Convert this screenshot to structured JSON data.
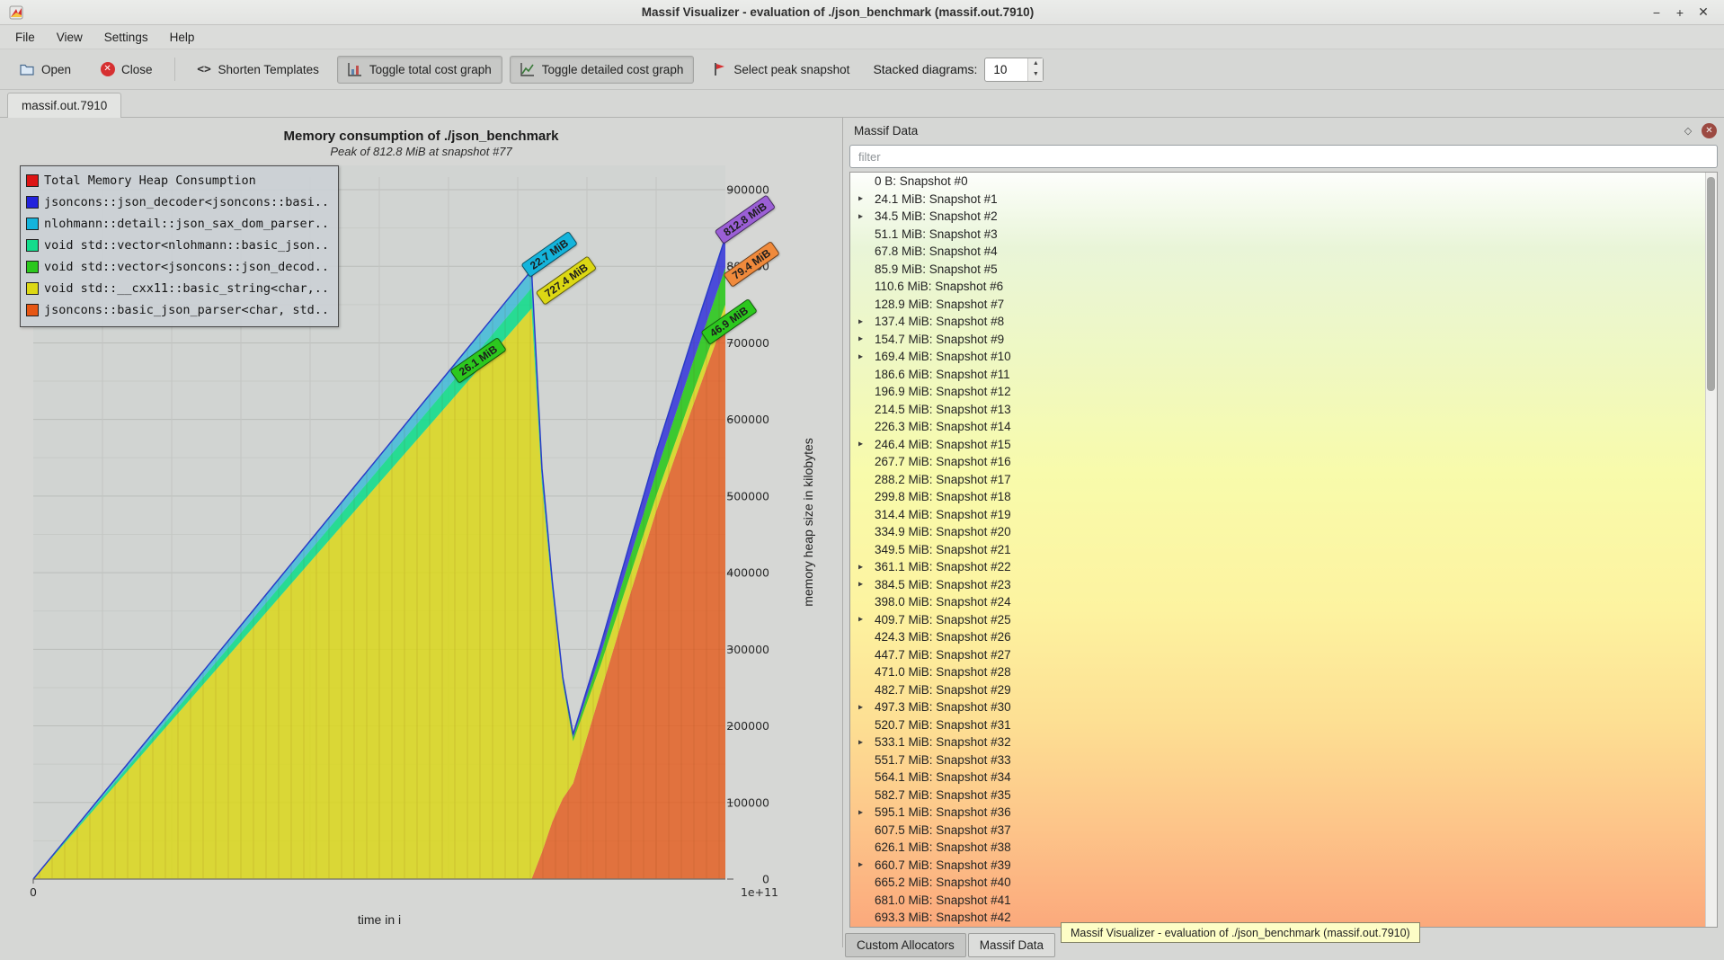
{
  "window": {
    "title": "Massif Visualizer - evaluation of ./json_benchmark (massif.out.7910)",
    "minimize": "−",
    "maximize": "+",
    "close": "✕"
  },
  "menubar": {
    "items": [
      "File",
      "View",
      "Settings",
      "Help"
    ]
  },
  "toolbar": {
    "open": "Open",
    "close": "Close",
    "shorten_icon": "<>",
    "shorten_templates": "Shorten Templates",
    "toggle_total": "Toggle total cost graph",
    "toggle_detailed": "Toggle detailed cost graph",
    "select_peak": "Select peak snapshot",
    "stacked_label": "Stacked diagrams:",
    "stacked_value": "10"
  },
  "tabbar": {
    "active_tab": "massif.out.7910"
  },
  "chart": {
    "legend": [
      {
        "label": "Total Memory Heap Consumption",
        "color": "#dc1414"
      },
      {
        "label": "jsoncons::json_decoder<jsoncons::basi..",
        "color": "#2323dc"
      },
      {
        "label": "nlohmann::detail::json_sax_dom_parser..",
        "color": "#14b4dc"
      },
      {
        "label": "void std::vector<nlohmann::basic_json..",
        "color": "#14dc8c"
      },
      {
        "label": "void std::vector<jsoncons::json_decod..",
        "color": "#2cc81e"
      },
      {
        "label": "void std::__cxx11::basic_string<char,..",
        "color": "#dcd814"
      },
      {
        "label": "jsoncons::basic_json_parser<char, std..",
        "color": "#e65614"
      }
    ]
  },
  "chart_data": {
    "type": "area",
    "title": "Memory consumption of ./json_benchmark",
    "subtitle": "Peak of 812.8 MiB at snapshot #77",
    "xlabel": "time in i",
    "ylabel": "memory heap size in kilobytes",
    "xlim": [
      0,
      105000000000
    ],
    "ylim": [
      0,
      900000
    ],
    "xtick_labels": [
      "0",
      "1e+11"
    ],
    "yticks": [
      0,
      100000,
      200000,
      300000,
      400000,
      500000,
      600000,
      700000,
      800000,
      900000
    ],
    "grid": true,
    "legend_position": "top-left",
    "x": [
      0,
      0.05,
      0.1,
      0.15,
      0.2,
      0.25,
      0.3,
      0.35,
      0.4,
      0.45,
      0.5,
      0.55,
      0.6,
      0.65,
      0.7,
      0.72,
      0.735,
      0.75,
      0.765,
      0.78,
      0.82,
      0.86,
      0.9,
      0.95,
      1.0
    ],
    "series": [
      {
        "name": "jsoncons::basic_json_parser<char, std..",
        "color": "#e65614",
        "opacity": 0.78,
        "values": [
          0,
          0,
          0,
          0,
          0,
          0,
          0,
          0,
          0,
          0,
          0,
          0,
          0,
          0,
          0,
          0,
          35000,
          75000,
          105000,
          125000,
          245000,
          365000,
          480000,
          610000,
          735000
        ]
      },
      {
        "name": "void std::__cxx11::basic_string<char,..",
        "color": "#dcd814",
        "opacity": 0.82,
        "values": [
          0,
          51700,
          103500,
          155200,
          206900,
          258700,
          310400,
          362200,
          413900,
          465600,
          517400,
          569100,
          620800,
          672600,
          724300,
          745000,
          480000,
          300000,
          150000,
          55000,
          35000,
          25000,
          20000,
          17000,
          15000
        ]
      },
      {
        "name": "void std::vector<nlohmann::basic_json..",
        "color": "#14dc8c",
        "opacity": 0.9,
        "values": [
          0,
          1900,
          3700,
          5600,
          7400,
          9300,
          11100,
          13000,
          14800,
          16700,
          18500,
          20400,
          22300,
          24100,
          26000,
          26700,
          9000,
          4000,
          1000,
          0,
          0,
          0,
          0,
          0,
          0
        ]
      },
      {
        "name": "nlohmann::detail::json_sax_dom_parser..",
        "color": "#14b4dc",
        "opacity": 0.65,
        "values": [
          0,
          1600,
          3200,
          4800,
          6400,
          8100,
          9700,
          11300,
          12900,
          14500,
          16100,
          17700,
          19300,
          20900,
          22600,
          23200,
          8000,
          3000,
          1000,
          0,
          0,
          0,
          0,
          0,
          0
        ]
      },
      {
        "name": "void std::vector<jsoncons::json_decod..",
        "color": "#2cc81e",
        "opacity": 0.9,
        "values": [
          0,
          0,
          0,
          0,
          0,
          0,
          0,
          0,
          0,
          0,
          0,
          0,
          0,
          0,
          0,
          0,
          2000,
          3000,
          4000,
          5000,
          14000,
          23000,
          31000,
          40000,
          48000
        ]
      },
      {
        "name": "jsoncons::json_decoder<jsoncons::basi..",
        "color": "#3232dc",
        "opacity": 0.85,
        "values": [
          0,
          0,
          0,
          0,
          0,
          0,
          0,
          0,
          0,
          0,
          0,
          0,
          0,
          0,
          0,
          0,
          2000,
          3000,
          3000,
          4000,
          12000,
          19000,
          26000,
          33000,
          40000
        ]
      }
    ],
    "total_line": {
      "label": "Total Memory Heap Consumption",
      "color": "#2a3cc8"
    },
    "annotations": [
      {
        "text": "26.1 MiB",
        "bg": "#2cc81e",
        "x": 0.643,
        "v": 677000
      },
      {
        "text": "22.7 MiB",
        "bg": "#14b4dc",
        "x": 0.746,
        "v": 816000
      },
      {
        "text": "727.4 MiB",
        "bg": "#dcd814",
        "x": 0.77,
        "v": 782000
      },
      {
        "text": "812.8 MiB",
        "bg": "#9b5fd6",
        "x": 1.028,
        "v": 861000
      },
      {
        "text": "79.4 MiB",
        "bg": "#f08a3c",
        "x": 1.038,
        "v": 803000
      },
      {
        "text": "46.9 MiB",
        "bg": "#2cc81e",
        "x": 1.005,
        "v": 727000
      }
    ]
  },
  "dock": {
    "title": "Massif Data",
    "filter_placeholder": "filter",
    "snapshots": [
      {
        "label": "0 B: Snapshot #0",
        "expandable": false
      },
      {
        "label": "24.1 MiB: Snapshot #1",
        "expandable": true
      },
      {
        "label": "34.5 MiB: Snapshot #2",
        "expandable": true
      },
      {
        "label": "51.1 MiB: Snapshot #3",
        "expandable": false
      },
      {
        "label": "67.8 MiB: Snapshot #4",
        "expandable": false
      },
      {
        "label": "85.9 MiB: Snapshot #5",
        "expandable": false
      },
      {
        "label": "110.6 MiB: Snapshot #6",
        "expandable": false
      },
      {
        "label": "128.9 MiB: Snapshot #7",
        "expandable": false
      },
      {
        "label": "137.4 MiB: Snapshot #8",
        "expandable": true
      },
      {
        "label": "154.7 MiB: Snapshot #9",
        "expandable": true
      },
      {
        "label": "169.4 MiB: Snapshot #10",
        "expandable": true
      },
      {
        "label": "186.6 MiB: Snapshot #11",
        "expandable": false
      },
      {
        "label": "196.9 MiB: Snapshot #12",
        "expandable": false
      },
      {
        "label": "214.5 MiB: Snapshot #13",
        "expandable": false
      },
      {
        "label": "226.3 MiB: Snapshot #14",
        "expandable": false
      },
      {
        "label": "246.4 MiB: Snapshot #15",
        "expandable": true
      },
      {
        "label": "267.7 MiB: Snapshot #16",
        "expandable": false
      },
      {
        "label": "288.2 MiB: Snapshot #17",
        "expandable": false
      },
      {
        "label": "299.8 MiB: Snapshot #18",
        "expandable": false
      },
      {
        "label": "314.4 MiB: Snapshot #19",
        "expandable": false
      },
      {
        "label": "334.9 MiB: Snapshot #20",
        "expandable": false
      },
      {
        "label": "349.5 MiB: Snapshot #21",
        "expandable": false
      },
      {
        "label": "361.1 MiB: Snapshot #22",
        "expandable": true
      },
      {
        "label": "384.5 MiB: Snapshot #23",
        "expandable": true
      },
      {
        "label": "398.0 MiB: Snapshot #24",
        "expandable": false
      },
      {
        "label": "409.7 MiB: Snapshot #25",
        "expandable": true
      },
      {
        "label": "424.3 MiB: Snapshot #26",
        "expandable": false
      },
      {
        "label": "447.7 MiB: Snapshot #27",
        "expandable": false
      },
      {
        "label": "471.0 MiB: Snapshot #28",
        "expandable": false
      },
      {
        "label": "482.7 MiB: Snapshot #29",
        "expandable": false
      },
      {
        "label": "497.3 MiB: Snapshot #30",
        "expandable": true
      },
      {
        "label": "520.7 MiB: Snapshot #31",
        "expandable": false
      },
      {
        "label": "533.1 MiB: Snapshot #32",
        "expandable": true
      },
      {
        "label": "551.7 MiB: Snapshot #33",
        "expandable": false
      },
      {
        "label": "564.1 MiB: Snapshot #34",
        "expandable": false
      },
      {
        "label": "582.7 MiB: Snapshot #35",
        "expandable": false
      },
      {
        "label": "595.1 MiB: Snapshot #36",
        "expandable": true
      },
      {
        "label": "607.5 MiB: Snapshot #37",
        "expandable": false
      },
      {
        "label": "626.1 MiB: Snapshot #38",
        "expandable": false
      },
      {
        "label": "660.7 MiB: Snapshot #39",
        "expandable": true
      },
      {
        "label": "665.2 MiB: Snapshot #40",
        "expandable": false
      },
      {
        "label": "681.0 MiB: Snapshot #41",
        "expandable": false
      },
      {
        "label": "693.3 MiB: Snapshot #42",
        "expandable": false
      }
    ],
    "bottom_tabs": [
      {
        "label": "Custom Allocators",
        "active": false
      },
      {
        "label": "Massif Data",
        "active": true
      }
    ]
  },
  "tooltip": {
    "text": "Massif Visualizer - evaluation of ./json_benchmark (massif.out.7910)"
  }
}
